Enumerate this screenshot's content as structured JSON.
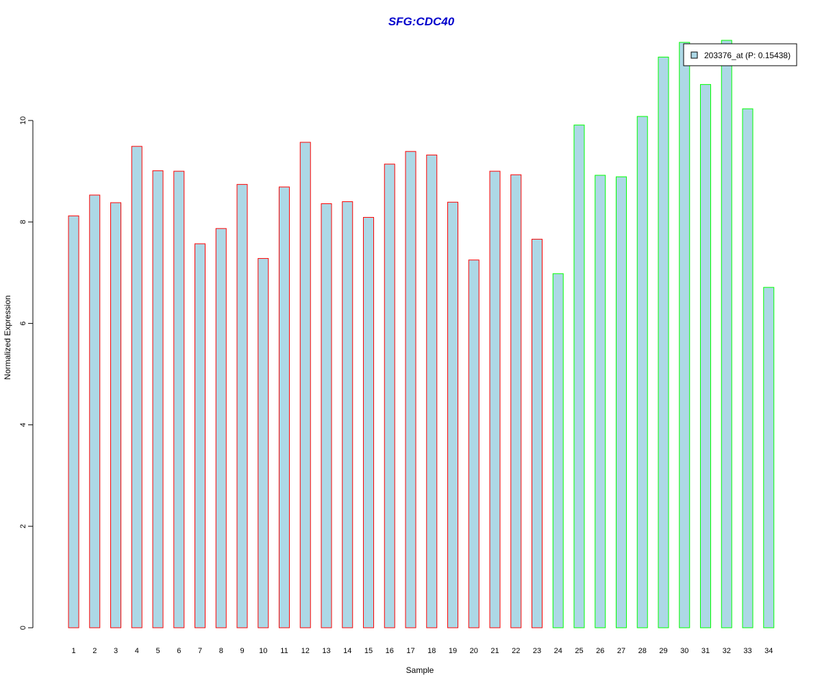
{
  "chart_data": {
    "type": "bar",
    "title": "SFG:CDC40",
    "xlabel": "Sample",
    "ylabel": "Normalized Expression",
    "categories": [
      "1",
      "2",
      "3",
      "4",
      "5",
      "6",
      "7",
      "8",
      "9",
      "10",
      "11",
      "12",
      "13",
      "14",
      "15",
      "16",
      "17",
      "18",
      "19",
      "20",
      "21",
      "22",
      "23",
      "24",
      "25",
      "26",
      "27",
      "28",
      "29",
      "30",
      "31",
      "32",
      "33",
      "34"
    ],
    "series": [
      {
        "name": "203376_at (P: 0.15438)",
        "values": [
          8.12,
          8.53,
          8.38,
          9.49,
          9.01,
          9.0,
          7.57,
          7.87,
          8.74,
          7.28,
          8.69,
          9.57,
          8.36,
          8.4,
          8.09,
          9.14,
          9.39,
          9.32,
          8.39,
          7.25,
          9.0,
          8.93,
          7.66,
          6.98,
          9.91,
          8.92,
          8.89,
          10.08,
          11.25,
          11.54,
          10.71,
          11.58,
          10.23,
          6.71
        ]
      }
    ],
    "group_colors": [
      "#FF0000",
      "#FF0000",
      "#FF0000",
      "#FF0000",
      "#FF0000",
      "#FF0000",
      "#FF0000",
      "#FF0000",
      "#FF0000",
      "#FF0000",
      "#FF0000",
      "#FF0000",
      "#FF0000",
      "#FF0000",
      "#FF0000",
      "#FF0000",
      "#FF0000",
      "#FF0000",
      "#FF0000",
      "#FF0000",
      "#FF0000",
      "#FF0000",
      "#FF0000",
      "#00FF00",
      "#00FF00",
      "#00FF00",
      "#00FF00",
      "#00FF00",
      "#00FF00",
      "#00FF00",
      "#00FF00",
      "#00FF00",
      "#00FF00",
      "#00FF00"
    ],
    "fill_color": "#ADD8E6",
    "title_color": "#0000CC",
    "yticks": [
      0,
      2,
      4,
      6,
      8,
      10
    ],
    "ylim": [
      0,
      11.6
    ],
    "grid": false,
    "legend_position": "top-right"
  }
}
